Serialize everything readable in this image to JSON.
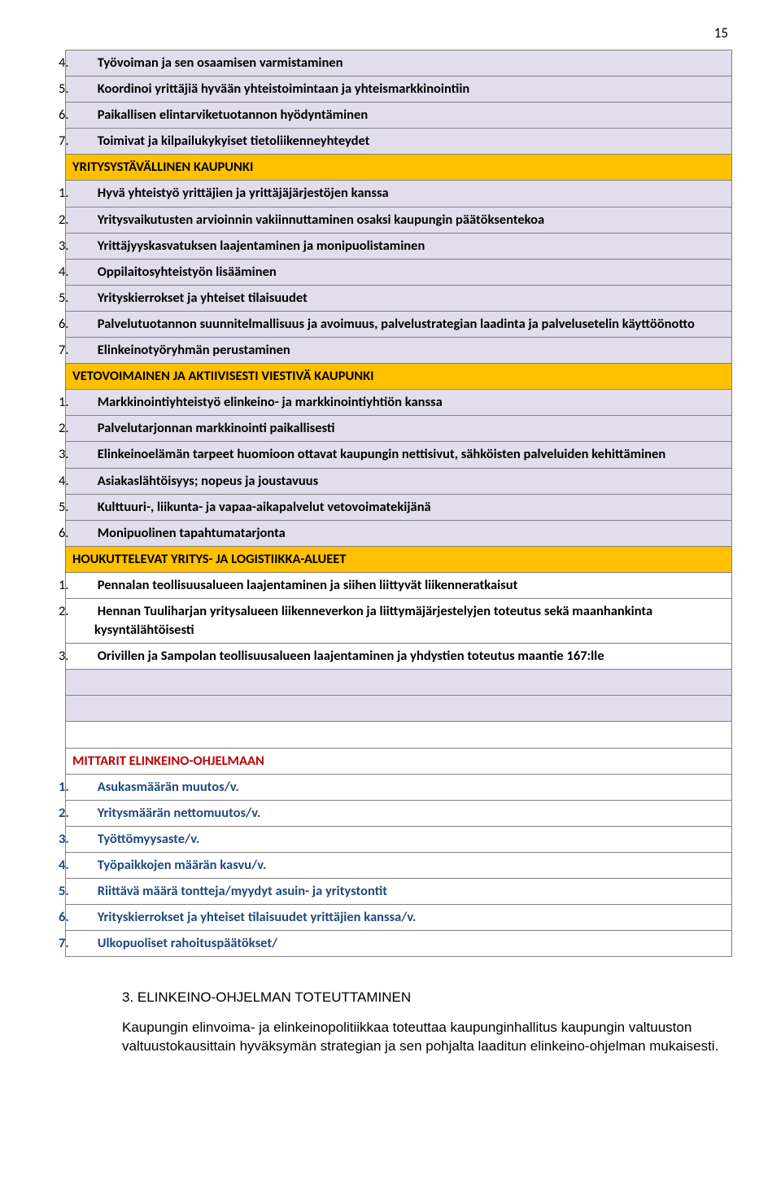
{
  "page_number": "15",
  "colors": {
    "amber": "#ffc000",
    "lavender": "#e1dded",
    "border": "#808080",
    "red": "#c00000",
    "blue": "#1f497d"
  },
  "section1_items": [
    "Työvoiman ja sen osaamisen varmistaminen",
    "Koordinoi yrittäjiä hyvään yhteistoimintaan ja yhteismarkkinointiin",
    "Paikallisen elintarviketuotannon hyödyntäminen",
    "Toimivat ja kilpailukykyiset tietoliikenneyhteydet"
  ],
  "section1_start": 4,
  "header2": "YRITYSYSTÄVÄLLINEN KAUPUNKI",
  "section2_items": [
    "Hyvä yhteistyö yrittäjien ja yrittäjäjärjestöjen kanssa",
    "Yritysvaikutusten arvioinnin vakiinnuttaminen osaksi kaupungin päätöksentekoa",
    "Yrittäjyyskasvatuksen laajentaminen ja monipuolistaminen",
    "Oppilaitosyhteistyön lisääminen",
    "Yrityskierrokset ja yhteiset tilaisuudet",
    "Palvelutuotannon suunnitelmallisuus ja avoimuus, palvelustrategian laadinta ja palvelusetelin käyttöönotto",
    "Elinkeinotyöryhmän perustaminen"
  ],
  "header3": "VETOVOIMAINEN JA AKTIIVISESTI VIESTIVÄ KAUPUNKI",
  "section3_items": [
    "Markkinointiyhteistyö elinkeino- ja markkinointiyhtiön kanssa",
    "Palvelutarjonnan markkinointi paikallisesti",
    "Elinkeinoelämän tarpeet huomioon ottavat kaupungin nettisivut, sähköisten palveluiden kehittäminen",
    "Asiakaslähtöisyys; nopeus ja joustavuus",
    "Kulttuuri-, liikunta- ja vapaa-aikapalvelut vetovoimatekijänä",
    "Monipuolinen tapahtumatarjonta"
  ],
  "header4": "HOUKUTTELEVAT YRITYS- JA LOGISTIIKKA-ALUEET",
  "section4_items": [
    "Pennalan teollisuusalueen laajentaminen ja siihen liittyvät liikenneratkaisut",
    "Hennan Tuuliharjan yritysalueen liikenneverkon ja liittymäjärjestelyjen toteutus sekä maanhankinta kysyntälähtöisesti",
    "Orivillen ja Sampolan teollisuusalueen laajentaminen ja yhdystien toteutus maantie 167:lle"
  ],
  "mittarit_title": "MITTARIT ELINKEINO-OHJELMAAN",
  "mittarit_items": [
    "Asukasmäärän muutos/v.",
    "Yritysmäärän nettomuutos/v.",
    "Työttömyysaste/v.",
    "Työpaikkojen määrän kasvu/v.",
    "Riittävä määrä tontteja/myydyt asuin- ja yritystontit",
    "Yrityskierrokset ja yhteiset tilaisuudet yrittäjien kanssa/v.",
    "Ulkopuoliset rahoituspäätökset/"
  ],
  "sec3_title": "3. ELINKEINO-OHJELMAN TOTEUTTAMINEN",
  "sec3_body": "Kaupungin elinvoima- ja elinkeinopolitiikkaa toteuttaa kaupunginhallitus kaupungin valtuuston valtuustokausittain hyväksymän strategian ja sen pohjalta laaditun elinkeino-ohjelman mukaisesti."
}
